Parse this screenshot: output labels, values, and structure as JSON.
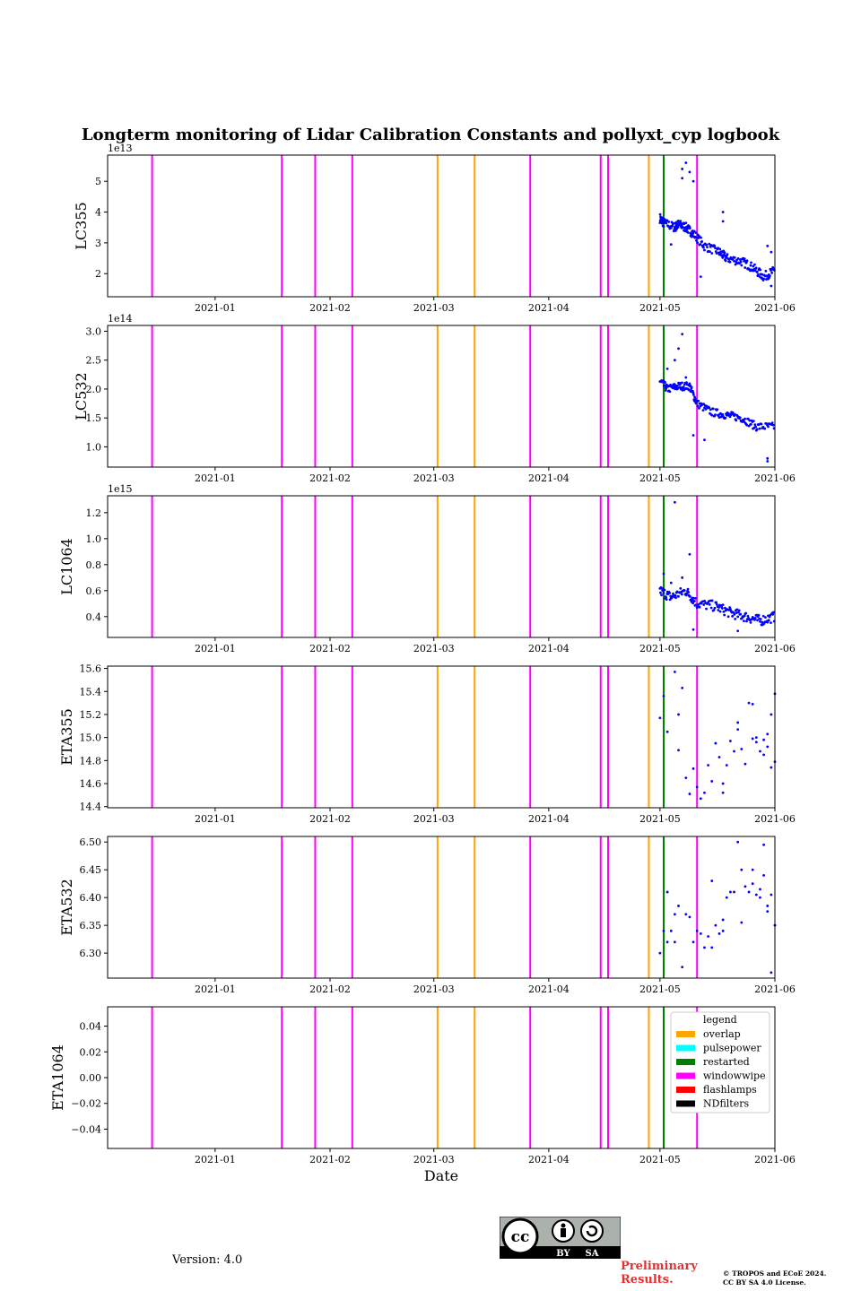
{
  "title": "Longterm monitoring of Lidar Calibration Constants and pollyxt_cyp logbook",
  "version_text": "Version: 4.0",
  "preliminary": [
    "Preliminary",
    "Results."
  ],
  "copyright": [
    "© TROPOS and ECoE 2024.",
    "CC BY SA 4.0 License."
  ],
  "license_badge": {
    "left": "BY",
    "right": "SA"
  },
  "colors": {
    "points": "#0000ff",
    "overlap": "#ffa500",
    "pulsepower": "#00ffff",
    "restarted": "#008000",
    "windowwipe": "#ff00ff",
    "flashlamps": "#ff0000",
    "NDfilters": "#000000"
  },
  "chart_data": {
    "type": "scatter",
    "xlabel": "Date",
    "x_range": [
      "2020-12-03",
      "2021-06-01"
    ],
    "x_ticks": [
      "2021-01",
      "2021-02",
      "2021-03",
      "2021-04",
      "2021-05",
      "2021-06"
    ],
    "x_tick_dates": [
      "2021-01-01",
      "2021-02-01",
      "2021-03-01",
      "2021-04-01",
      "2021-05-01",
      "2021-06-01"
    ],
    "events": [
      {
        "date": "2020-12-15",
        "type": "windowwipe"
      },
      {
        "date": "2021-01-19",
        "type": "windowwipe"
      },
      {
        "date": "2021-01-28",
        "type": "windowwipe"
      },
      {
        "date": "2021-02-07",
        "type": "windowwipe"
      },
      {
        "date": "2021-03-02",
        "type": "overlap"
      },
      {
        "date": "2021-03-12",
        "type": "overlap"
      },
      {
        "date": "2021-03-27",
        "type": "windowwipe"
      },
      {
        "date": "2021-04-15",
        "type": "windowwipe"
      },
      {
        "date": "2021-04-17",
        "type": "windowwipe"
      },
      {
        "date": "2021-04-28",
        "type": "overlap"
      },
      {
        "date": "2021-05-02",
        "type": "restarted"
      },
      {
        "date": "2021-05-11",
        "type": "windowwipe"
      }
    ],
    "legend": {
      "title": "legend",
      "position": "right",
      "entries": [
        "overlap",
        "pulsepower",
        "restarted",
        "windowwipe",
        "flashlamps",
        "NDfilters"
      ]
    },
    "panels": [
      {
        "ylabel": "LC355",
        "exponent": "1e13",
        "ylim": [
          1.25,
          5.85
        ],
        "yticks": [
          2,
          3,
          4,
          5
        ],
        "tick_labels": [
          "2",
          "3",
          "4",
          "5"
        ],
        "segments": [
          [
            "2021-05-01",
            3.8
          ],
          [
            "2021-05-02",
            3.65
          ],
          [
            "2021-05-05",
            3.5
          ],
          [
            "2021-05-06",
            3.6
          ],
          [
            "2021-05-08",
            3.5
          ],
          [
            "2021-05-10",
            3.3
          ],
          [
            "2021-05-13",
            2.9
          ],
          [
            "2021-05-17",
            2.7
          ],
          [
            "2021-05-19",
            2.5
          ],
          [
            "2021-05-23",
            2.4
          ],
          [
            "2021-05-26",
            2.2
          ],
          [
            "2021-05-29",
            1.9
          ],
          [
            "2021-06-01",
            2.1
          ]
        ],
        "spread": 0.15,
        "extra": [
          [
            "2021-05-07",
            5.4
          ],
          [
            "2021-05-08",
            5.6
          ],
          [
            "2021-05-09",
            5.3
          ],
          [
            "2021-05-10",
            5.0
          ],
          [
            "2021-05-07",
            5.1
          ],
          [
            "2021-05-18",
            4.0
          ],
          [
            "2021-05-18",
            3.7
          ],
          [
            "2021-05-30",
            2.9
          ],
          [
            "2021-05-31",
            2.7
          ],
          [
            "2021-05-31",
            1.6
          ],
          [
            "2021-05-04",
            2.95
          ],
          [
            "2021-05-12",
            1.9
          ]
        ]
      },
      {
        "ylabel": "LC532",
        "exponent": "1e14",
        "ylim": [
          0.65,
          3.1
        ],
        "yticks": [
          1.0,
          1.5,
          2.0,
          2.5,
          3.0
        ],
        "tick_labels": [
          "1.0",
          "1.5",
          "2.0",
          "2.5",
          "3.0"
        ],
        "segments": [
          [
            "2021-05-01",
            2.15
          ],
          [
            "2021-05-03",
            2.0
          ],
          [
            "2021-05-06",
            2.05
          ],
          [
            "2021-05-09",
            2.05
          ],
          [
            "2021-05-11",
            1.75
          ],
          [
            "2021-05-15",
            1.6
          ],
          [
            "2021-05-19",
            1.55
          ],
          [
            "2021-05-23",
            1.5
          ],
          [
            "2021-05-27",
            1.35
          ],
          [
            "2021-06-01",
            1.35
          ]
        ],
        "spread": 0.07,
        "extra": [
          [
            "2021-05-06",
            2.7
          ],
          [
            "2021-05-07",
            2.95
          ],
          [
            "2021-05-05",
            2.5
          ],
          [
            "2021-05-03",
            2.35
          ],
          [
            "2021-05-10",
            1.2
          ],
          [
            "2021-05-13",
            1.12
          ],
          [
            "2021-05-30",
            0.8
          ],
          [
            "2021-05-30",
            0.75
          ],
          [
            "2021-05-08",
            2.2
          ]
        ]
      },
      {
        "ylabel": "LC1064",
        "exponent": "1e15",
        "ylim": [
          0.24,
          1.33
        ],
        "yticks": [
          0.4,
          0.6,
          0.8,
          1.0,
          1.2
        ],
        "tick_labels": [
          "0.4",
          "0.6",
          "0.8",
          "1.0",
          "1.2"
        ],
        "segments": [
          [
            "2021-05-01",
            0.6
          ],
          [
            "2021-05-04",
            0.55
          ],
          [
            "2021-05-08",
            0.6
          ],
          [
            "2021-05-11",
            0.5
          ],
          [
            "2021-05-16",
            0.48
          ],
          [
            "2021-05-20",
            0.43
          ],
          [
            "2021-05-24",
            0.4
          ],
          [
            "2021-05-28",
            0.37
          ],
          [
            "2021-06-01",
            0.4
          ]
        ],
        "spread": 0.04,
        "extra": [
          [
            "2021-05-05",
            1.28
          ],
          [
            "2021-05-09",
            0.88
          ],
          [
            "2021-05-02",
            0.73
          ],
          [
            "2021-05-07",
            0.7
          ],
          [
            "2021-05-04",
            0.66
          ],
          [
            "2021-05-10",
            0.3
          ],
          [
            "2021-05-22",
            0.29
          ]
        ]
      },
      {
        "ylabel": "ETA355",
        "exponent": "",
        "ylim": [
          14.39,
          15.62
        ],
        "yticks": [
          14.4,
          14.6,
          14.8,
          15.0,
          15.2,
          15.4,
          15.6
        ],
        "tick_labels": [
          "14.4",
          "14.6",
          "14.8",
          "15.0",
          "15.2",
          "15.4",
          "15.6"
        ],
        "segments": [],
        "spread": 0,
        "extra": [
          [
            "2021-05-01",
            15.17
          ],
          [
            "2021-05-02",
            15.36
          ],
          [
            "2021-05-03",
            15.05
          ],
          [
            "2021-05-05",
            15.57
          ],
          [
            "2021-05-06",
            15.2
          ],
          [
            "2021-05-07",
            15.43
          ],
          [
            "2021-05-06",
            14.89
          ],
          [
            "2021-05-08",
            14.65
          ],
          [
            "2021-05-09",
            14.51
          ],
          [
            "2021-05-10",
            14.73
          ],
          [
            "2021-05-11",
            14.57
          ],
          [
            "2021-05-12",
            14.47
          ],
          [
            "2021-05-13",
            14.52
          ],
          [
            "2021-05-14",
            14.76
          ],
          [
            "2021-05-15",
            14.62
          ],
          [
            "2021-05-16",
            14.95
          ],
          [
            "2021-05-17",
            14.83
          ],
          [
            "2021-05-18",
            14.52
          ],
          [
            "2021-05-18",
            14.6
          ],
          [
            "2021-05-19",
            14.76
          ],
          [
            "2021-05-20",
            14.97
          ],
          [
            "2021-05-21",
            14.88
          ],
          [
            "2021-05-22",
            15.13
          ],
          [
            "2021-05-22",
            15.07
          ],
          [
            "2021-05-23",
            14.9
          ],
          [
            "2021-05-24",
            14.77
          ],
          [
            "2021-05-25",
            15.3
          ],
          [
            "2021-05-26",
            15.29
          ],
          [
            "2021-05-26",
            14.99
          ],
          [
            "2021-05-27",
            15.0
          ],
          [
            "2021-05-27",
            14.96
          ],
          [
            "2021-05-28",
            14.88
          ],
          [
            "2021-05-29",
            14.85
          ],
          [
            "2021-05-29",
            14.98
          ],
          [
            "2021-05-30",
            14.92
          ],
          [
            "2021-05-30",
            15.03
          ],
          [
            "2021-05-31",
            14.74
          ],
          [
            "2021-05-31",
            15.2
          ],
          [
            "2021-06-01",
            14.79
          ],
          [
            "2021-06-01",
            15.38
          ]
        ]
      },
      {
        "ylabel": "ETA532",
        "exponent": "",
        "ylim": [
          6.255,
          6.51
        ],
        "yticks": [
          6.3,
          6.35,
          6.4,
          6.45,
          6.5
        ],
        "tick_labels": [
          "6.30",
          "6.35",
          "6.40",
          "6.45",
          "6.50"
        ],
        "segments": [],
        "spread": 0,
        "extra": [
          [
            "2021-05-01",
            6.3
          ],
          [
            "2021-05-02",
            6.34
          ],
          [
            "2021-05-03",
            6.41
          ],
          [
            "2021-05-03",
            6.32
          ],
          [
            "2021-05-04",
            6.34
          ],
          [
            "2021-05-05",
            6.37
          ],
          [
            "2021-05-05",
            6.32
          ],
          [
            "2021-05-06",
            6.385
          ],
          [
            "2021-05-07",
            6.275
          ],
          [
            "2021-05-08",
            6.37
          ],
          [
            "2021-05-09",
            6.365
          ],
          [
            "2021-05-10",
            6.32
          ],
          [
            "2021-05-11",
            6.34
          ],
          [
            "2021-05-12",
            6.335
          ],
          [
            "2021-05-13",
            6.31
          ],
          [
            "2021-05-14",
            6.33
          ],
          [
            "2021-05-15",
            6.31
          ],
          [
            "2021-05-15",
            6.43
          ],
          [
            "2021-05-16",
            6.35
          ],
          [
            "2021-05-17",
            6.335
          ],
          [
            "2021-05-18",
            6.36
          ],
          [
            "2021-05-18",
            6.34
          ],
          [
            "2021-05-19",
            6.4
          ],
          [
            "2021-05-20",
            6.41
          ],
          [
            "2021-05-21",
            6.41
          ],
          [
            "2021-05-22",
            6.5
          ],
          [
            "2021-05-23",
            6.45
          ],
          [
            "2021-05-23",
            6.355
          ],
          [
            "2021-05-24",
            6.42
          ],
          [
            "2021-05-25",
            6.41
          ],
          [
            "2021-05-26",
            6.45
          ],
          [
            "2021-05-26",
            6.425
          ],
          [
            "2021-05-27",
            6.405
          ],
          [
            "2021-05-28",
            6.4
          ],
          [
            "2021-05-28",
            6.415
          ],
          [
            "2021-05-29",
            6.44
          ],
          [
            "2021-05-29",
            6.495
          ],
          [
            "2021-05-30",
            6.375
          ],
          [
            "2021-05-30",
            6.385
          ],
          [
            "2021-05-31",
            6.265
          ],
          [
            "2021-05-31",
            6.405
          ],
          [
            "2021-06-01",
            6.35
          ],
          [
            "2021-06-01",
            6.35
          ]
        ]
      },
      {
        "ylabel": "ETA1064",
        "exponent": "",
        "ylim": [
          -0.055,
          0.055
        ],
        "yticks": [
          -0.04,
          -0.02,
          0.0,
          0.02,
          0.04
        ],
        "tick_labels": [
          "−0.04",
          "−0.02",
          "0.00",
          "0.02",
          "0.04"
        ],
        "segments": [],
        "spread": 0,
        "extra": []
      }
    ]
  }
}
